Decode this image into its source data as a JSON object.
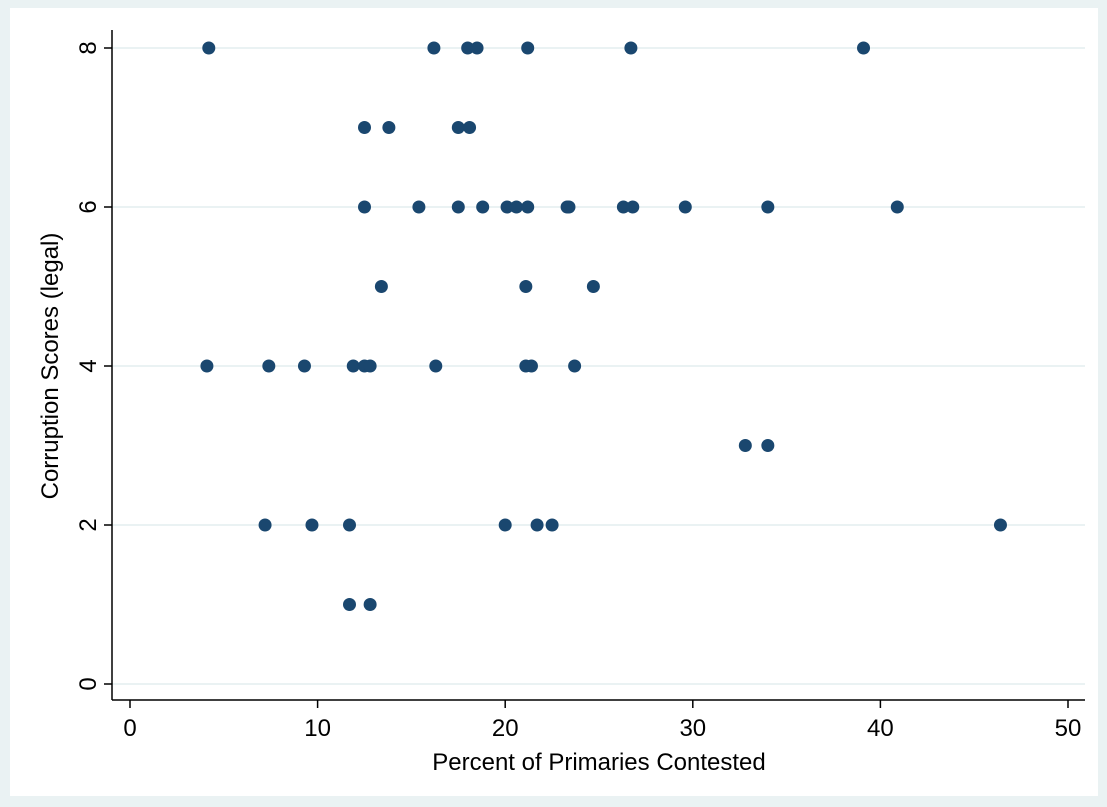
{
  "chart_data": {
    "type": "scatter",
    "xlabel": "Percent of Primaries Contested",
    "ylabel": "Corruption Scores (legal)",
    "color": "#1a476f",
    "grid": true,
    "xlim": [
      0,
      50
    ],
    "xticks": [
      0,
      10,
      20,
      30,
      40,
      50
    ],
    "ylim": [
      0,
      8
    ],
    "yticks": [
      0,
      2,
      4,
      6,
      8
    ],
    "x": [
      4.2,
      16.2,
      18.0,
      18.5,
      21.2,
      26.7,
      39.1,
      12.5,
      13.8,
      17.5,
      18.1,
      12.5,
      15.4,
      17.5,
      18.8,
      20.1,
      20.6,
      21.2,
      23.3,
      23.4,
      26.3,
      26.8,
      29.6,
      34.0,
      40.9,
      13.4,
      21.1,
      24.7,
      4.1,
      7.4,
      9.3,
      11.9,
      12.5,
      12.8,
      16.3,
      21.1,
      21.4,
      23.7,
      32.8,
      34.0,
      7.2,
      9.7,
      11.7,
      20.0,
      21.7,
      22.5,
      46.4,
      11.7,
      12.8
    ],
    "y": [
      8,
      8,
      8,
      8,
      8,
      8,
      8,
      7,
      7,
      7,
      7,
      6,
      6,
      6,
      6,
      6,
      6,
      6,
      6,
      6,
      6,
      6,
      6,
      6,
      6,
      5,
      5,
      5,
      4,
      4,
      4,
      4,
      4,
      4,
      4,
      4,
      4,
      4,
      3,
      3,
      2,
      2,
      2,
      2,
      2,
      2,
      2,
      1,
      1
    ]
  }
}
